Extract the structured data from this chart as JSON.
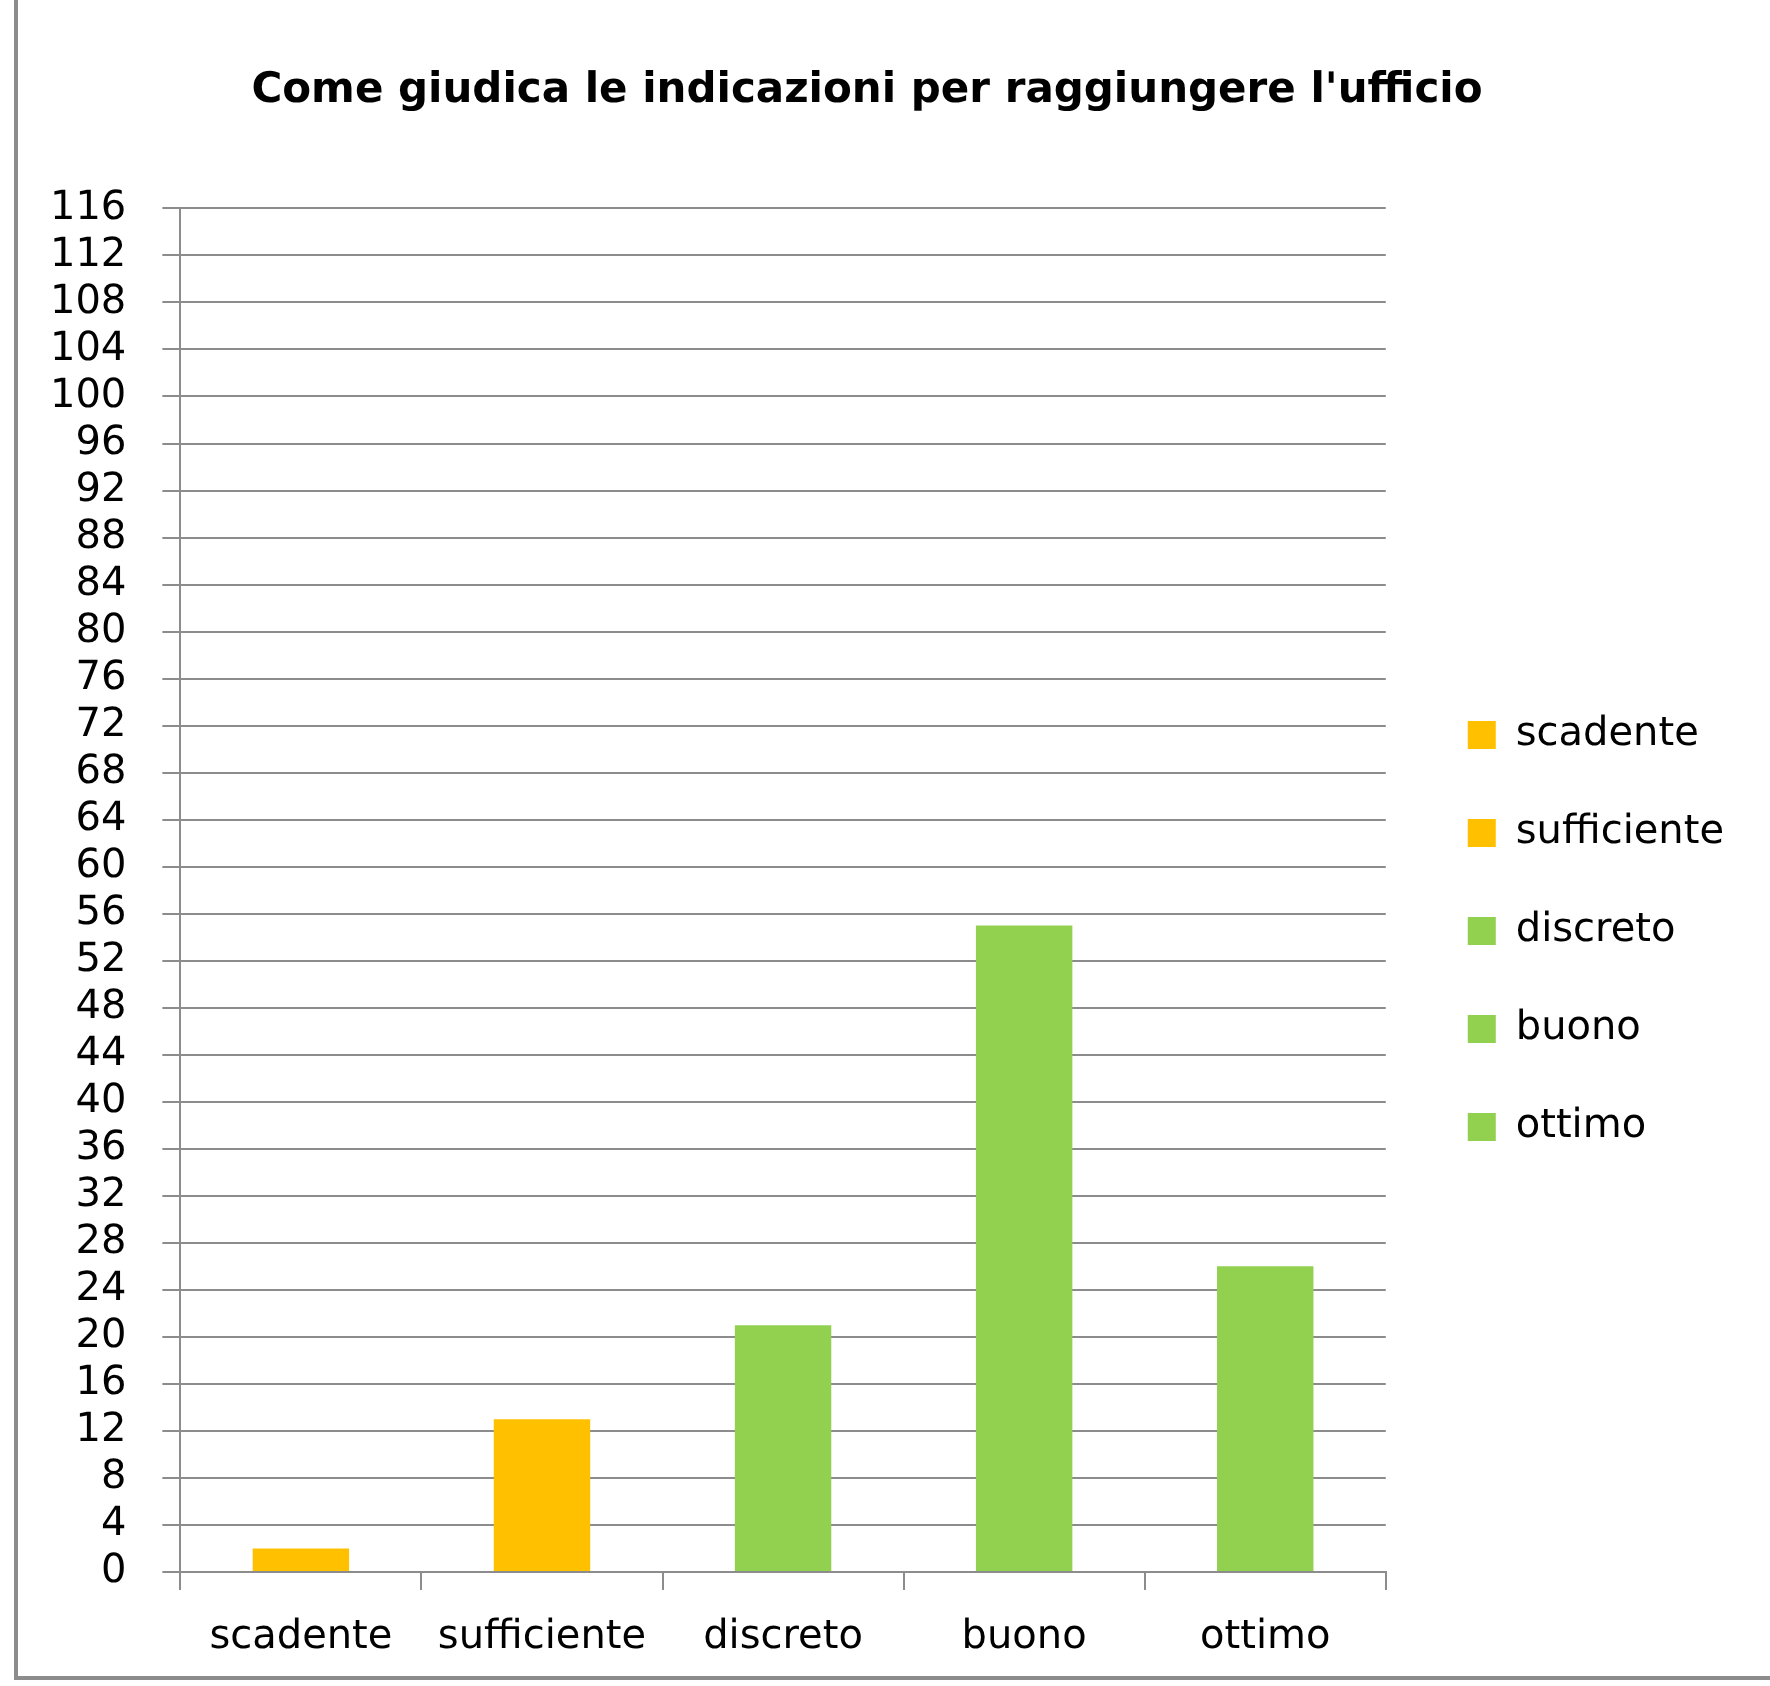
{
  "chart_data": {
    "type": "bar",
    "title": "Come giudica le indicazioni per raggiungere l'ufficio",
    "categories": [
      "scadente",
      "sufficiente",
      "discreto",
      "buono",
      "ottimo"
    ],
    "series": [
      {
        "name": "scadente",
        "color": "#ffc000",
        "values": [
          2,
          null,
          null,
          null,
          null
        ]
      },
      {
        "name": "sufficiente",
        "color": "#ffc000",
        "values": [
          null,
          13,
          null,
          null,
          null
        ]
      },
      {
        "name": "discreto",
        "color": "#92d050",
        "values": [
          null,
          null,
          21,
          null,
          null
        ]
      },
      {
        "name": "buono",
        "color": "#92d050",
        "values": [
          null,
          null,
          null,
          55,
          null
        ]
      },
      {
        "name": "ottimo",
        "color": "#92d050",
        "values": [
          null,
          null,
          null,
          null,
          26
        ]
      }
    ],
    "ylim": [
      0,
      116
    ],
    "yticks": [
      0,
      4,
      8,
      12,
      16,
      20,
      24,
      28,
      32,
      36,
      40,
      44,
      48,
      52,
      56,
      60,
      64,
      68,
      72,
      76,
      80,
      84,
      88,
      92,
      96,
      100,
      104,
      108,
      112,
      116
    ],
    "grid": "y",
    "legend": "right"
  }
}
